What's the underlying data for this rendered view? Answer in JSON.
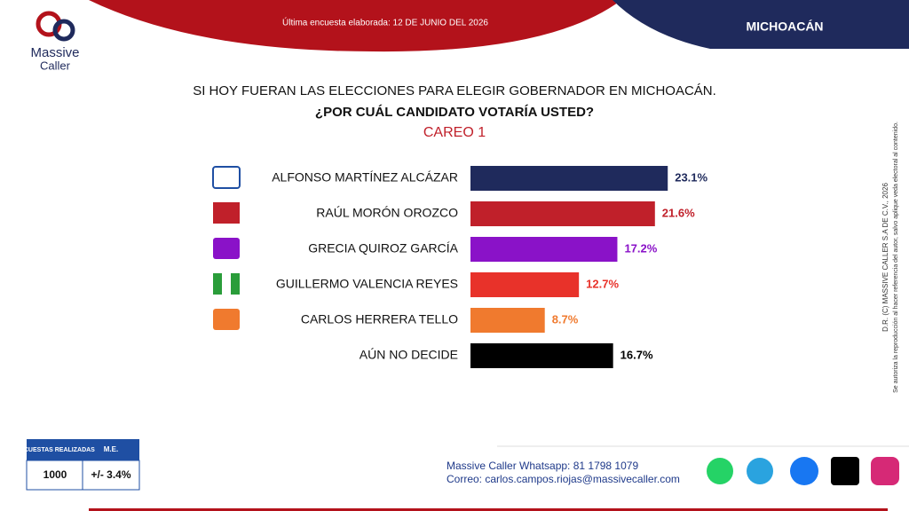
{
  "header": {
    "survey_date": "Última encuesta elaborada: 12 DE JUNIO DEL 2026",
    "state": "MICHOACÁN",
    "logo_line1": "Massive",
    "logo_line2": "Caller"
  },
  "chart_data": {
    "type": "bar",
    "orientation": "horizontal",
    "title": "SI HOY FUERAN LAS ELECCIONES PARA ELEGIR GOBERNADOR EN MICHOACÁN.",
    "subtitle": "¿POR CUÁL CANDIDATO VOTARÍA USTED?",
    "annotation": "CAREO 1",
    "categories": [
      "ALFONSO MARTÍNEZ ALCÁZAR",
      "RAÚL MORÓN OROZCO",
      "GRECIA QUIROZ GARCÍA",
      "GUILLERMO VALENCIA REYES",
      "CARLOS HERRERA TELLO",
      "AÚN NO DECIDE"
    ],
    "values": [
      23.1,
      21.6,
      17.2,
      12.7,
      8.7,
      16.7
    ],
    "value_labels": [
      "23.1%",
      "21.6%",
      "17.2%",
      "12.7%",
      "8.7%",
      "16.7%"
    ],
    "colors": [
      "#1f2a5c",
      "#c0202a",
      "#8a12c8",
      "#e8322a",
      "#f07a2e",
      "#000000"
    ],
    "label_colors": [
      "#1f2a5c",
      "#c0202a",
      "#8a12c8",
      "#e8322a",
      "#f07a2e",
      "#000000"
    ]
  },
  "copyright": {
    "line1": "D.R. (C) MASSIVE CALLER S.A DE C.V., 2026",
    "line2": "Se autoriza la reproducción al hacer referencia del autor, salvo aplique veda electoral al contenido."
  },
  "survey_table": {
    "header": [
      "ENCUESTAS REALIZADAS",
      "M.E."
    ],
    "row": [
      "1000",
      "+/- 3.4%"
    ]
  },
  "footer": {
    "whatsapp": "Massive Caller Whatsapp: 81 1798 1079",
    "email": "Correo: carlos.campos.riojas@massivecaller.com"
  }
}
